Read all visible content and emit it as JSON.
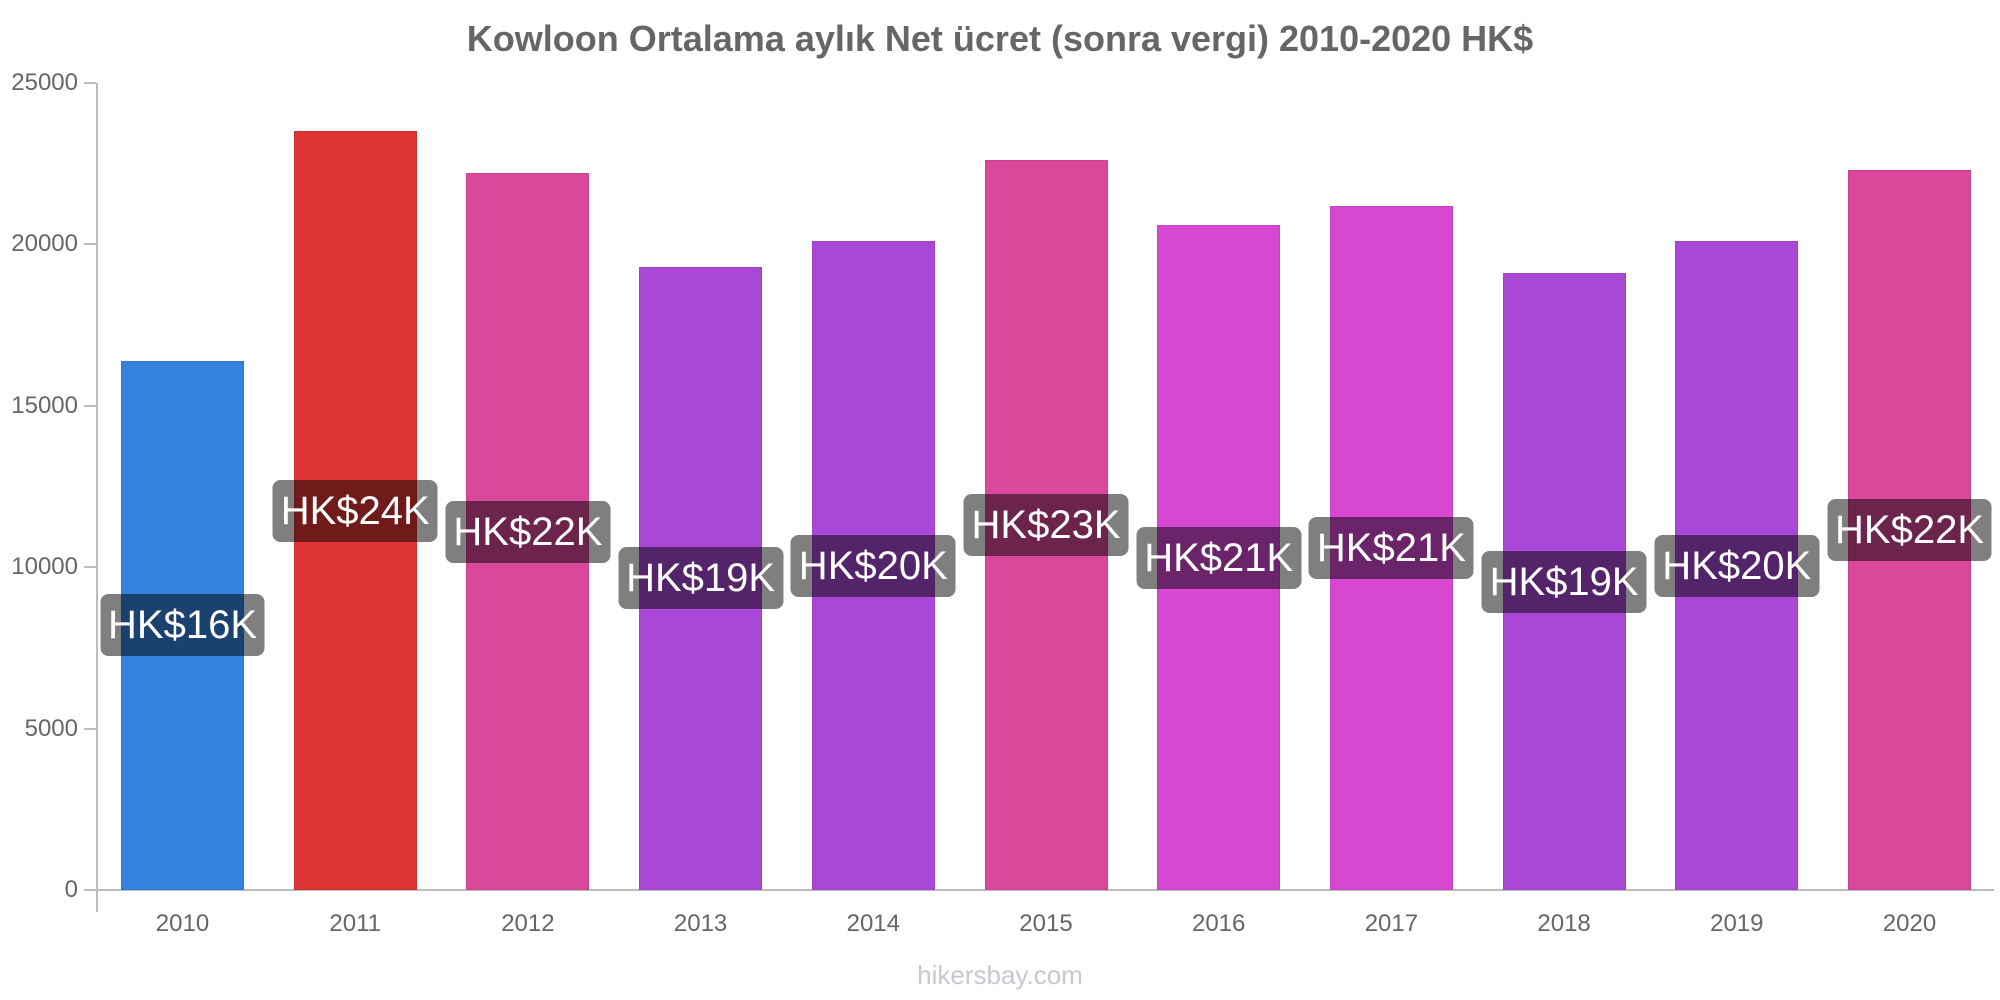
{
  "chart_data": {
    "type": "bar",
    "title": "Kowloon Ortalama aylık Net ücret (sonra vergi) 2010-2020 HK$",
    "xlabel": "",
    "ylabel": "",
    "ylim": [
      0,
      25000
    ],
    "yticks": [
      "0",
      "5000",
      "10000",
      "15000",
      "20000",
      "25000"
    ],
    "grid": false,
    "legend": null,
    "categories": [
      "2010",
      "2011",
      "2012",
      "2013",
      "2014",
      "2015",
      "2016",
      "2017",
      "2018",
      "2019",
      "2020"
    ],
    "values": [
      16400,
      23500,
      22200,
      19300,
      20100,
      22600,
      20600,
      21200,
      19100,
      20100,
      22300
    ],
    "value_labels": [
      "HK$16K",
      "HK$24K",
      "HK$22K",
      "HK$19K",
      "HK$20K",
      "HK$23K",
      "HK$21K",
      "HK$21K",
      "HK$19K",
      "HK$20K",
      "HK$22K"
    ],
    "bar_colors": [
      "#3583de",
      "#e03535",
      "#d9489a",
      "#a948d7",
      "#a948d7",
      "#d9489a",
      "#d648d2",
      "#d648d2",
      "#a948d7",
      "#a948d7",
      "#d9489a"
    ]
  },
  "footer": {
    "watermark": "hikersbay.com"
  }
}
